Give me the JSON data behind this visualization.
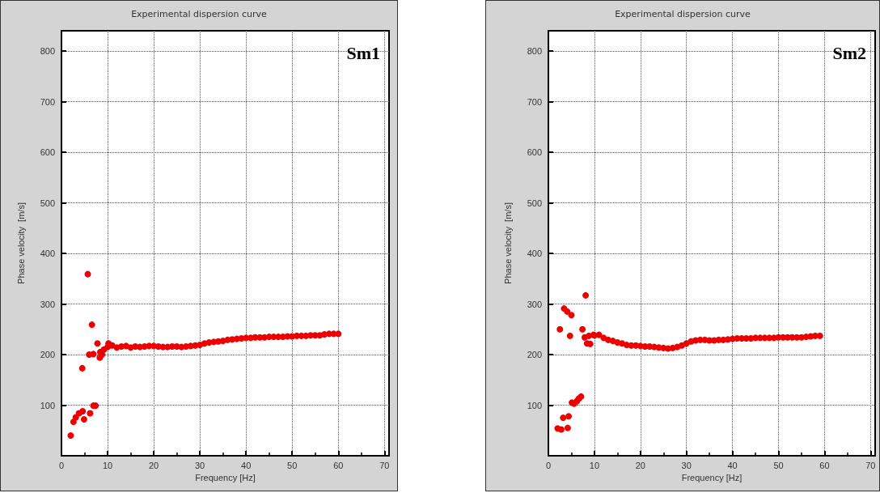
{
  "chart_data": [
    {
      "type": "scatter",
      "title": "Experimental dispersion curve",
      "xlabel": "Frequency [Hz]",
      "ylabel": "Phase velocity  [m/s]",
      "annotations": [
        "Sm1"
      ],
      "xlim": [
        0,
        71
      ],
      "ylim": [
        0,
        840
      ],
      "xticks": [
        0,
        10,
        20,
        30,
        40,
        50,
        60,
        70
      ],
      "yticks": [
        100,
        200,
        300,
        400,
        500,
        600,
        700,
        800
      ],
      "grid": true,
      "marker": "circle",
      "series": [
        {
          "color": "#ee0000",
          "x": [
            2.0,
            2.6,
            3.1,
            3.8,
            4.6,
            4.9,
            4.5,
            5.7,
            6.2,
            6.0,
            6.6,
            6.9,
            7.4,
            6.9,
            7.8,
            8.3,
            8.4,
            8.8,
            9.2,
            10.2,
            10,
            11,
            12,
            13,
            14,
            15,
            16,
            17,
            18,
            19,
            20,
            21,
            22,
            23,
            24,
            25,
            26,
            27,
            28,
            29,
            30,
            31,
            32,
            33,
            34,
            35,
            36,
            37,
            38,
            39,
            40,
            41,
            42,
            43,
            44,
            45,
            46,
            47,
            48,
            49,
            50,
            51,
            52,
            53,
            54,
            55,
            56,
            57,
            58,
            59,
            60
          ],
          "values": [
            40,
            67,
            76,
            84,
            88,
            72,
            173,
            359,
            84,
            200,
            259,
            99,
            99,
            201,
            222,
            194,
            205,
            200,
            210,
            222,
            215,
            218,
            214,
            216,
            217,
            214,
            216,
            215,
            216,
            217,
            217,
            216,
            215,
            215,
            216,
            216,
            215,
            216,
            217,
            218,
            219,
            222,
            224,
            225,
            226,
            227,
            229,
            230,
            231,
            232,
            233,
            233,
            234,
            234,
            234,
            235,
            235,
            235,
            235,
            236,
            236,
            237,
            237,
            237,
            238,
            238,
            238,
            240,
            241,
            241,
            241
          ]
        }
      ]
    },
    {
      "type": "scatter",
      "title": "Experimental dispersion curve",
      "xlabel": "Frequency [Hz]",
      "ylabel": "Phase velocity  [m/s]",
      "annotations": [
        "Sm2"
      ],
      "xlim": [
        0,
        71
      ],
      "ylim": [
        0,
        840
      ],
      "xticks": [
        0,
        10,
        20,
        30,
        40,
        50,
        60,
        70
      ],
      "yticks": [
        100,
        200,
        300,
        400,
        500,
        600,
        700,
        800
      ],
      "grid": true,
      "marker": "circle",
      "series": [
        {
          "color": "#ee0000",
          "x": [
            2.0,
            2.8,
            2.5,
            3.4,
            4.1,
            3.2,
            4.4,
            4.2,
            5.0,
            4.7,
            5.1,
            5.6,
            6.2,
            6.6,
            7.1,
            7.4,
            8.1,
            7.9,
            8.4,
            9.1,
            8.8,
            9.8,
            10,
            11,
            12,
            13,
            14,
            15,
            16,
            17,
            18,
            19,
            20,
            21,
            22,
            23,
            24,
            25,
            26,
            27,
            28,
            29,
            30,
            31,
            32,
            33,
            34,
            35,
            36,
            37,
            38,
            39,
            40,
            41,
            42,
            43,
            44,
            45,
            46,
            47,
            48,
            49,
            50,
            51,
            52,
            53,
            54,
            55,
            56,
            57,
            58,
            59
          ],
          "values": [
            54,
            52,
            250,
            291,
            285,
            75,
            78,
            55,
            278,
            237,
            105,
            103,
            108,
            113,
            117,
            250,
            317,
            234,
            222,
            221,
            237,
            239,
            238,
            239,
            233,
            229,
            227,
            224,
            222,
            219,
            218,
            218,
            217,
            216,
            216,
            215,
            214,
            213,
            212,
            213,
            215,
            218,
            222,
            226,
            228,
            229,
            229,
            228,
            228,
            229,
            229,
            230,
            231,
            232,
            232,
            232,
            232,
            233,
            233,
            233,
            233,
            233,
            234,
            234,
            234,
            234,
            234,
            234,
            235,
            236,
            237,
            237
          ]
        }
      ]
    }
  ]
}
